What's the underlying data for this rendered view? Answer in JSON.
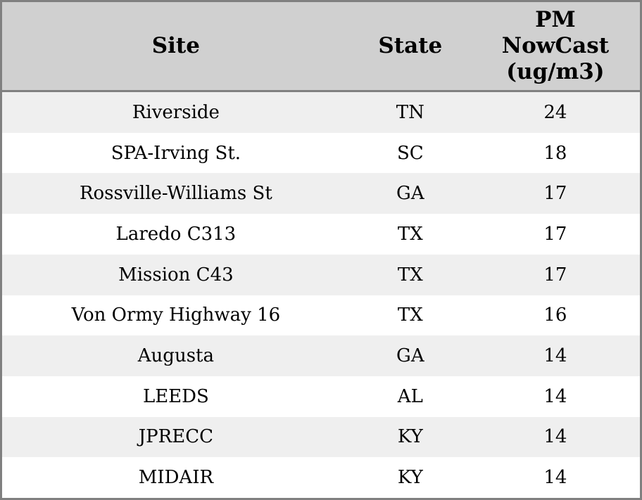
{
  "table": {
    "columns": [
      {
        "key": "site",
        "label": "Site"
      },
      {
        "key": "state",
        "label": "State"
      },
      {
        "key": "pm",
        "label": "PM NowCast (ug/m3)"
      }
    ],
    "rows": [
      {
        "site": "Riverside",
        "state": "TN",
        "pm": "24"
      },
      {
        "site": "SPA-Irving St.",
        "state": "SC",
        "pm": "18"
      },
      {
        "site": "Rossville-Williams St",
        "state": "GA",
        "pm": "17"
      },
      {
        "site": "Laredo C313",
        "state": "TX",
        "pm": "17"
      },
      {
        "site": "Mission C43",
        "state": "TX",
        "pm": "17"
      },
      {
        "site": "Von Ormy Highway 16",
        "state": "TX",
        "pm": "16"
      },
      {
        "site": "Augusta",
        "state": "GA",
        "pm": "14"
      },
      {
        "site": "LEEDS",
        "state": "AL",
        "pm": "14"
      },
      {
        "site": "JPRECC",
        "state": "KY",
        "pm": "14"
      },
      {
        "site": "MIDAIR",
        "state": "KY",
        "pm": "14"
      }
    ]
  },
  "chart_data": {
    "type": "table",
    "title": "",
    "columns": [
      "Site",
      "State",
      "PM NowCast (ug/m3)"
    ],
    "rows": [
      [
        "Riverside",
        "TN",
        24
      ],
      [
        "SPA-Irving St.",
        "SC",
        18
      ],
      [
        "Rossville-Williams St",
        "GA",
        17
      ],
      [
        "Laredo C313",
        "TX",
        17
      ],
      [
        "Mission C43",
        "TX",
        17
      ],
      [
        "Von Ormy Highway 16",
        "TX",
        16
      ],
      [
        "Augusta",
        "GA",
        14
      ],
      [
        "LEEDS",
        "AL",
        14
      ],
      [
        "JPRECC",
        "KY",
        14
      ],
      [
        "MIDAIR",
        "KY",
        14
      ]
    ],
    "layout": {
      "striped_rows": true,
      "header_position": "top",
      "text_align": "center"
    }
  },
  "colors": {
    "header_bg": "#d0d0d0",
    "row_bg": "#ffffff",
    "row_alt_bg": "#efefef",
    "border": "#808080",
    "text": "#000000"
  }
}
